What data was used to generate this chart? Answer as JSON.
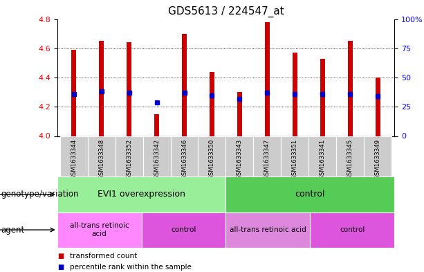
{
  "title": "GDS5613 / 224547_at",
  "samples": [
    "GSM1633344",
    "GSM1633348",
    "GSM1633352",
    "GSM1633342",
    "GSM1633346",
    "GSM1633350",
    "GSM1633343",
    "GSM1633347",
    "GSM1633351",
    "GSM1633341",
    "GSM1633345",
    "GSM1633349"
  ],
  "bar_values": [
    4.59,
    4.65,
    4.64,
    4.15,
    4.7,
    4.44,
    4.3,
    4.78,
    4.57,
    4.53,
    4.65,
    4.4
  ],
  "percentile_values": [
    4.285,
    4.305,
    4.295,
    4.23,
    4.295,
    4.275,
    4.255,
    4.295,
    4.285,
    4.285,
    4.285,
    4.27
  ],
  "bar_bottom": 4.0,
  "ylim_left": [
    4.0,
    4.8
  ],
  "ylim_right": [
    0,
    100
  ],
  "yticks_left": [
    4.0,
    4.2,
    4.4,
    4.6,
    4.8
  ],
  "yticks_right": [
    0,
    25,
    50,
    75,
    100
  ],
  "ytick_right_labels": [
    "0",
    "25",
    "50",
    "75",
    "100%"
  ],
  "bar_color": "#cc0000",
  "percentile_color": "#0000cc",
  "bar_width": 0.18,
  "background_color": "#ffffff",
  "plot_bg_color": "#ffffff",
  "genotype_row": {
    "label": "genotype/variation",
    "groups": [
      {
        "text": "EVI1 overexpression",
        "span": [
          0,
          5
        ],
        "color": "#99ee99"
      },
      {
        "text": "control",
        "span": [
          6,
          11
        ],
        "color": "#55cc55"
      }
    ]
  },
  "agent_row": {
    "label": "agent",
    "groups": [
      {
        "text": "all-trans retinoic\nacid",
        "span": [
          0,
          2
        ],
        "color": "#ff88ff"
      },
      {
        "text": "control",
        "span": [
          3,
          5
        ],
        "color": "#dd55dd"
      },
      {
        "text": "all-trans retinoic acid",
        "span": [
          6,
          8
        ],
        "color": "#dd88dd"
      },
      {
        "text": "control",
        "span": [
          9,
          11
        ],
        "color": "#dd55dd"
      }
    ]
  },
  "legend_items": [
    {
      "color": "#cc0000",
      "label": "transformed count"
    },
    {
      "color": "#0000cc",
      "label": "percentile rank within the sample"
    }
  ],
  "tick_bg_color": "#cccccc",
  "title_fontsize": 11,
  "tick_fontsize": 8,
  "label_fontsize": 8.5
}
